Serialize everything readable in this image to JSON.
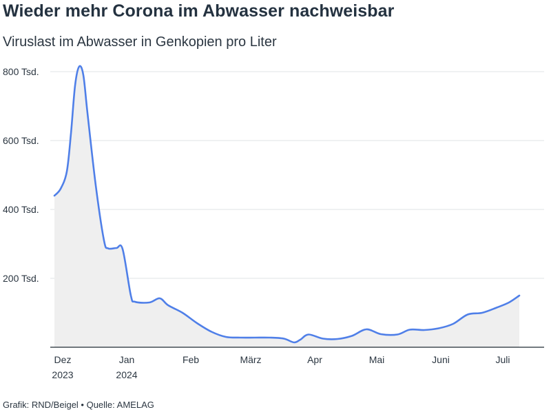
{
  "chart_data": {
    "type": "area",
    "title": "Wieder mehr Corona im Abwasser nachweisbar",
    "subtitle": "Viruslast im Abwasser in Genkopien pro Liter",
    "ylim": [
      0,
      800000
    ],
    "y_ticks": [
      {
        "value": 200000,
        "label": "200 Tsd."
      },
      {
        "value": 400000,
        "label": "400 Tsd."
      },
      {
        "value": 600000,
        "label": "600 Tsd."
      },
      {
        "value": 800000,
        "label": "800 Tsd."
      }
    ],
    "xlim": [
      "2023-11-27",
      "2024-07-23"
    ],
    "x_ticks": [
      {
        "date": "2023-12-01",
        "label": "Dez",
        "label2": "2023"
      },
      {
        "date": "2024-01-01",
        "label": "Jan",
        "label2": "2024"
      },
      {
        "date": "2024-02-01",
        "label": "Feb",
        "label2": ""
      },
      {
        "date": "2024-03-01",
        "label": "März",
        "label2": ""
      },
      {
        "date": "2024-04-01",
        "label": "Apr",
        "label2": ""
      },
      {
        "date": "2024-05-01",
        "label": "Mai",
        "label2": ""
      },
      {
        "date": "2024-06-01",
        "label": "Juni",
        "label2": ""
      },
      {
        "date": "2024-07-01",
        "label": "Juli",
        "label2": ""
      }
    ],
    "series": [
      {
        "line_color": "#4f7fe8",
        "fill_color": "#efefef",
        "points": [
          [
            "2023-11-29",
            440000
          ],
          [
            "2023-12-02",
            460000
          ],
          [
            "2023-12-05",
            510000
          ],
          [
            "2023-12-07",
            620000
          ],
          [
            "2023-12-09",
            760000
          ],
          [
            "2023-12-11",
            815000
          ],
          [
            "2023-12-13",
            790000
          ],
          [
            "2023-12-15",
            680000
          ],
          [
            "2023-12-19",
            470000
          ],
          [
            "2023-12-23",
            310000
          ],
          [
            "2023-12-25",
            287000
          ],
          [
            "2023-12-29",
            288000
          ],
          [
            "2024-01-01",
            285000
          ],
          [
            "2024-01-05",
            150000
          ],
          [
            "2024-01-07",
            132000
          ],
          [
            "2024-01-14",
            130000
          ],
          [
            "2024-01-19",
            142000
          ],
          [
            "2024-01-23",
            122000
          ],
          [
            "2024-01-30",
            100000
          ],
          [
            "2024-02-06",
            70000
          ],
          [
            "2024-02-13",
            45000
          ],
          [
            "2024-02-20",
            30000
          ],
          [
            "2024-02-27",
            28000
          ],
          [
            "2024-03-05",
            28000
          ],
          [
            "2024-03-12",
            28000
          ],
          [
            "2024-03-19",
            25000
          ],
          [
            "2024-03-24",
            14000
          ],
          [
            "2024-03-27",
            22000
          ],
          [
            "2024-03-31",
            37000
          ],
          [
            "2024-04-07",
            25000
          ],
          [
            "2024-04-14",
            24000
          ],
          [
            "2024-04-21",
            33000
          ],
          [
            "2024-04-28",
            52000
          ],
          [
            "2024-05-05",
            38000
          ],
          [
            "2024-05-13",
            37000
          ],
          [
            "2024-05-19",
            51000
          ],
          [
            "2024-05-26",
            50000
          ],
          [
            "2024-06-02",
            55000
          ],
          [
            "2024-06-09",
            68000
          ],
          [
            "2024-06-16",
            95000
          ],
          [
            "2024-06-23",
            100000
          ],
          [
            "2024-06-30",
            115000
          ],
          [
            "2024-07-06",
            130000
          ],
          [
            "2024-07-11",
            150000
          ]
        ]
      }
    ]
  },
  "footer": {
    "text": "Grafik: RND/Beigel • Quelle: AMELAG"
  }
}
